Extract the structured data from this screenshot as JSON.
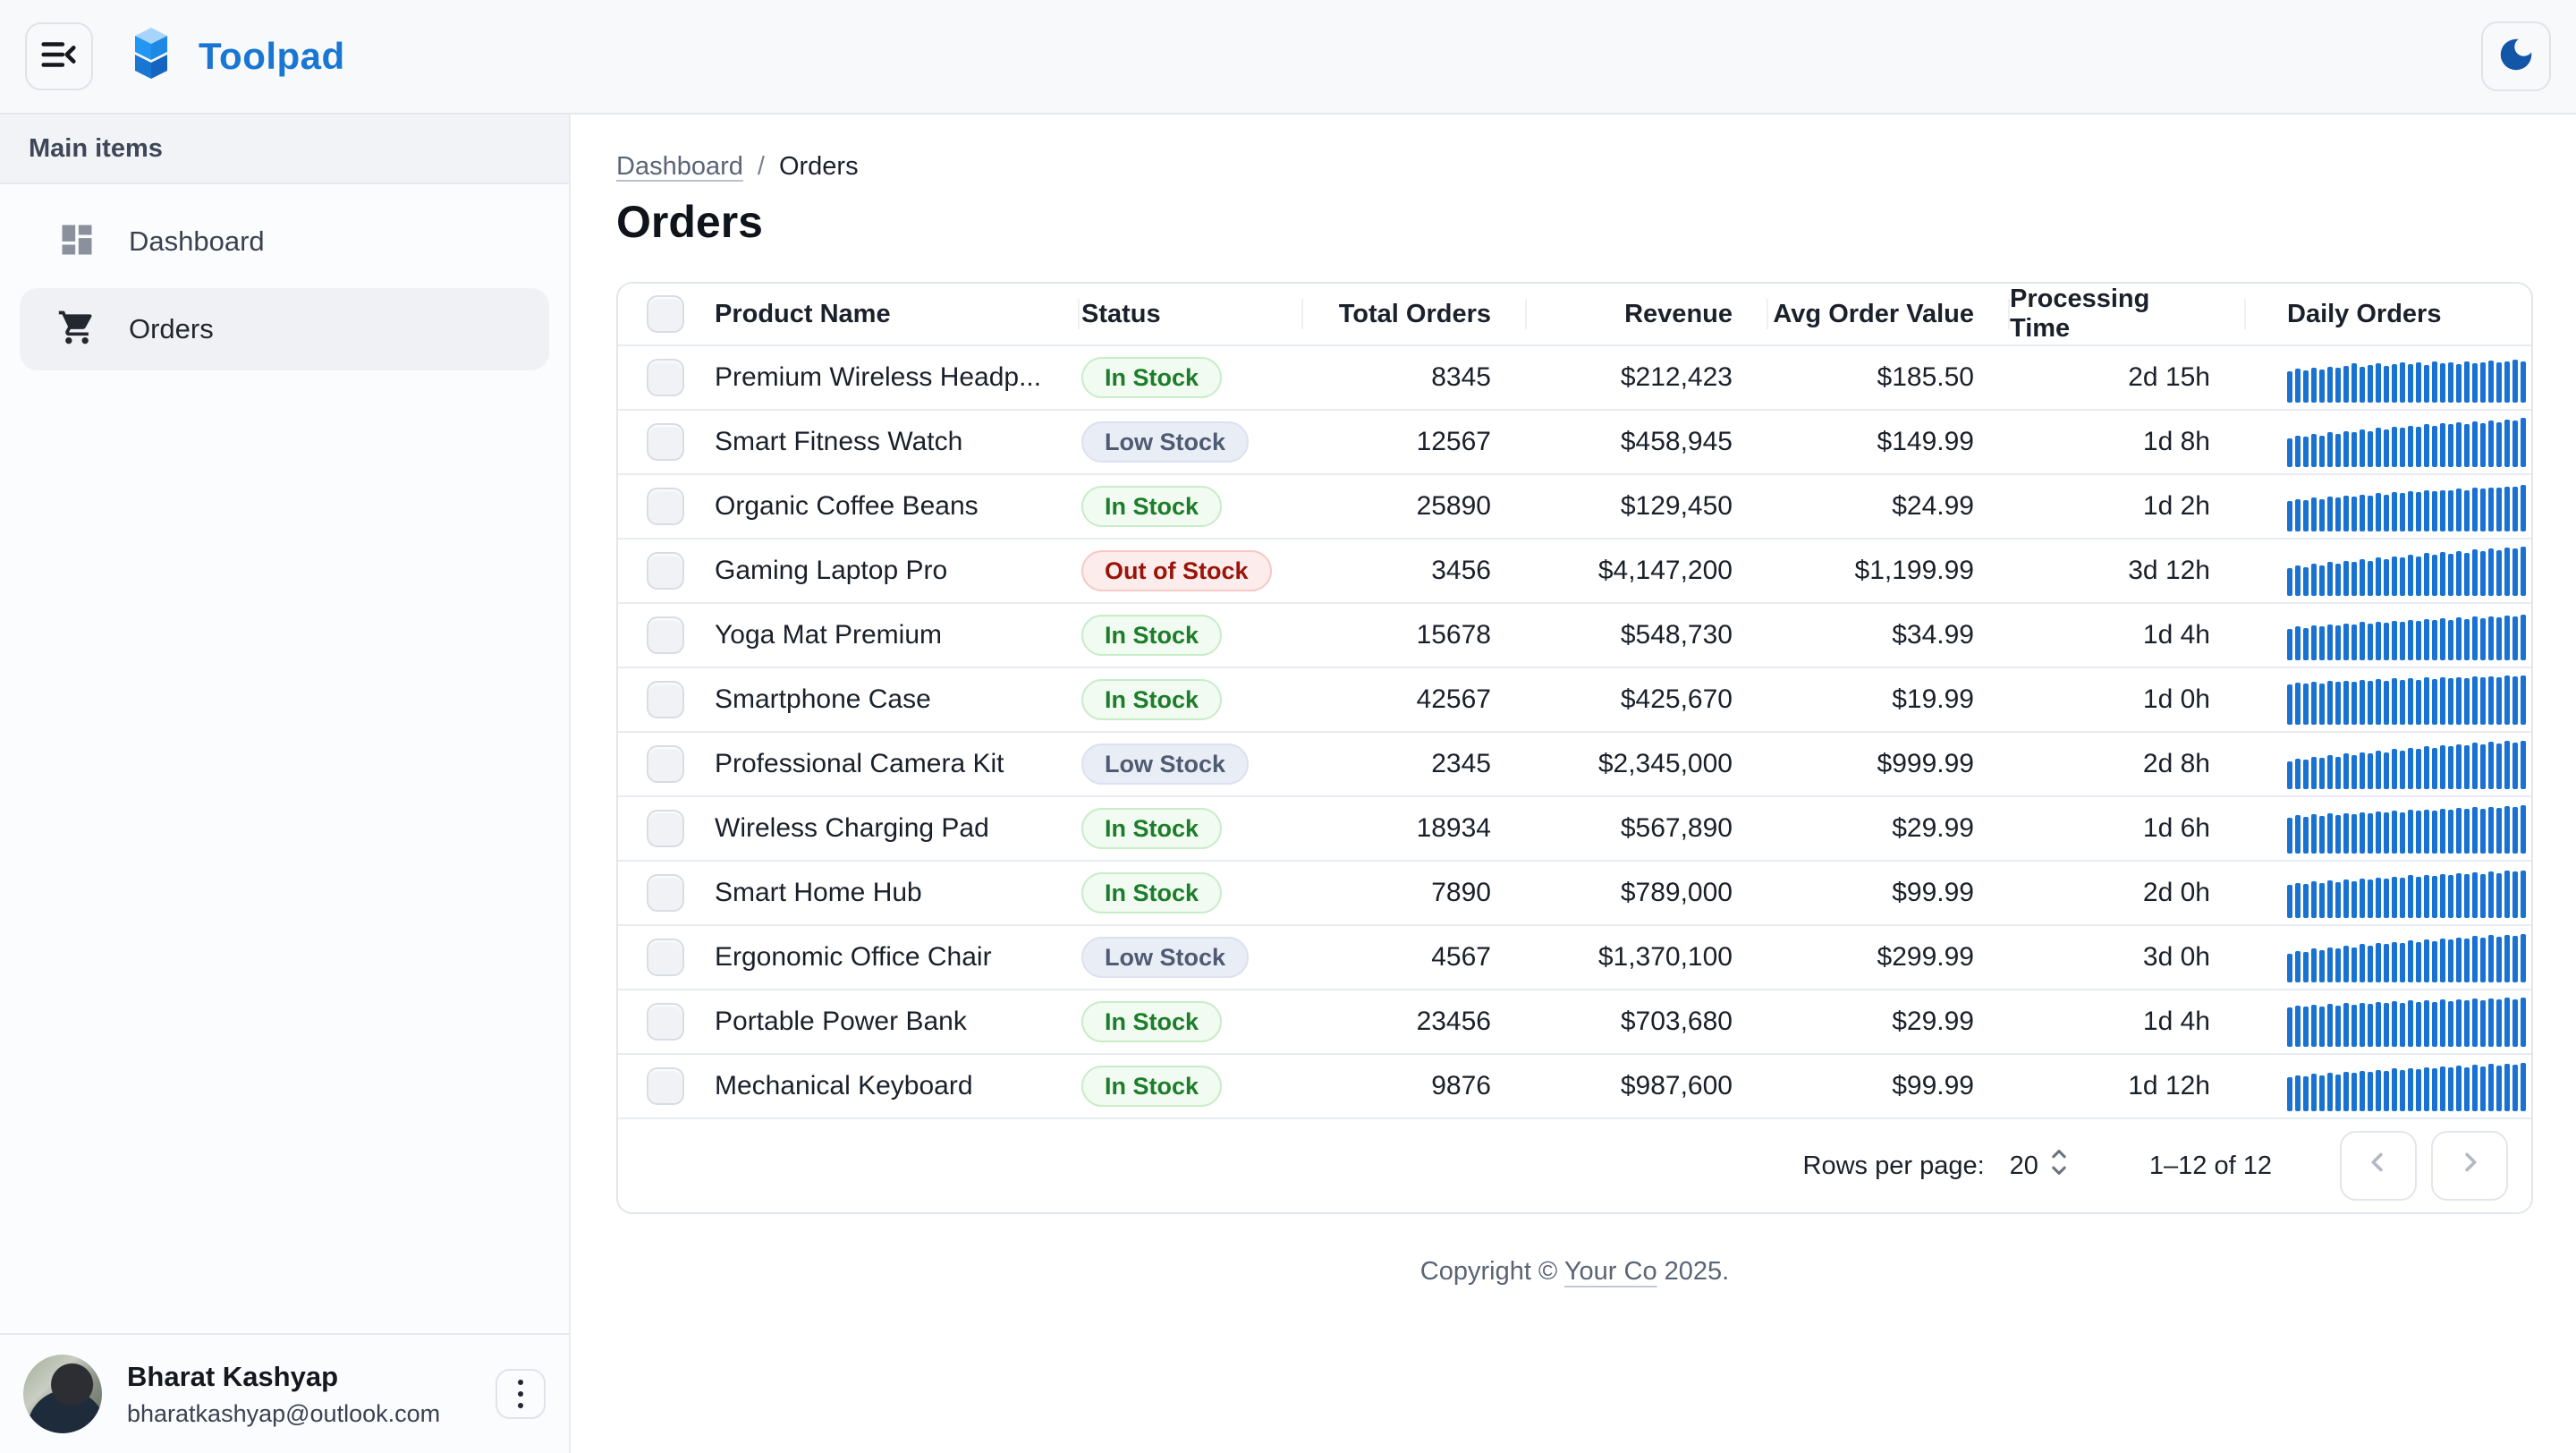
{
  "app": {
    "name": "Toolpad"
  },
  "sidebar": {
    "section_label": "Main items",
    "items": [
      {
        "label": "Dashboard",
        "icon": "dashboard-icon",
        "selected": false
      },
      {
        "label": "Orders",
        "icon": "cart-icon",
        "selected": true
      }
    ],
    "user": {
      "name": "Bharat Kashyap",
      "email": "bharatkashyap@outlook.com"
    }
  },
  "breadcrumb": {
    "items": [
      "Dashboard",
      "Orders"
    ]
  },
  "page": {
    "title": "Orders"
  },
  "table": {
    "columns": [
      "",
      "Product Name",
      "Status",
      "Total Orders",
      "Revenue",
      "Avg Order Value",
      "Processing Time",
      "Daily Orders"
    ],
    "rows": [
      {
        "product": "Premium Wireless Headp...",
        "status": "In Stock",
        "variant": "success",
        "total_orders": "8345",
        "revenue": "$212,423",
        "avg_order_value": "$185.50",
        "processing_time": "2d 15h",
        "spark": [
          62,
          68,
          64,
          70,
          66,
          72,
          69,
          74,
          78,
          72,
          75,
          79,
          74,
          77,
          81,
          76,
          80,
          75,
          82,
          78,
          80,
          77,
          83,
          79,
          81,
          84,
          80,
          82,
          86,
          83
        ]
      },
      {
        "product": "Smart Fitness Watch",
        "status": "Low Stock",
        "variant": "neutral",
        "total_orders": "12567",
        "revenue": "$458,945",
        "avg_order_value": "$149.99",
        "processing_time": "1d 8h",
        "spark": [
          58,
          62,
          60,
          66,
          63,
          69,
          66,
          72,
          70,
          75,
          72,
          78,
          75,
          80,
          78,
          83,
          80,
          85,
          82,
          87,
          85,
          89,
          86,
          91,
          88,
          93,
          90,
          95,
          93,
          98
        ]
      },
      {
        "product": "Organic Coffee Beans",
        "status": "In Stock",
        "variant": "success",
        "total_orders": "25890",
        "revenue": "$129,450",
        "avg_order_value": "$24.99",
        "processing_time": "1d 2h",
        "spark": [
          60,
          64,
          62,
          67,
          65,
          70,
          67,
          72,
          70,
          74,
          72,
          76,
          74,
          78,
          76,
          80,
          78,
          82,
          80,
          83,
          82,
          85,
          83,
          87,
          85,
          88,
          87,
          90,
          89,
          92
        ]
      },
      {
        "product": "Gaming Laptop Pro",
        "status": "Out of Stock",
        "variant": "error",
        "total_orders": "3456",
        "revenue": "$4,147,200",
        "avg_order_value": "$1,199.99",
        "processing_time": "3d 12h",
        "spark": [
          55,
          60,
          58,
          64,
          61,
          67,
          64,
          70,
          67,
          73,
          70,
          76,
          73,
          79,
          76,
          82,
          79,
          85,
          82,
          88,
          84,
          90,
          86,
          92,
          89,
          94,
          91,
          96,
          94,
          99
        ]
      },
      {
        "product": "Yoga Mat Premium",
        "status": "In Stock",
        "variant": "success",
        "total_orders": "15678",
        "revenue": "$548,730",
        "avg_order_value": "$34.99",
        "processing_time": "1d 4h",
        "spark": [
          63,
          67,
          65,
          70,
          67,
          72,
          69,
          74,
          71,
          76,
          73,
          77,
          75,
          79,
          76,
          81,
          78,
          82,
          80,
          84,
          81,
          85,
          83,
          87,
          84,
          88,
          86,
          90,
          88,
          91
        ]
      },
      {
        "product": "Smartphone Case",
        "status": "In Stock",
        "variant": "success",
        "total_orders": "42567",
        "revenue": "$425,670",
        "avg_order_value": "$19.99",
        "processing_time": "1d 0h",
        "spark": [
          80,
          84,
          82,
          86,
          83,
          87,
          85,
          88,
          86,
          90,
          87,
          91,
          88,
          92,
          89,
          93,
          90,
          94,
          91,
          94,
          92,
          95,
          93,
          96,
          94,
          97,
          95,
          98,
          96,
          99
        ]
      },
      {
        "product": "Professional Camera Kit",
        "status": "Low Stock",
        "variant": "neutral",
        "total_orders": "2345",
        "revenue": "$2,345,000",
        "avg_order_value": "$999.99",
        "processing_time": "2d 8h",
        "spark": [
          56,
          61,
          59,
          65,
          62,
          68,
          65,
          71,
          68,
          74,
          71,
          77,
          74,
          80,
          77,
          83,
          80,
          86,
          83,
          88,
          85,
          90,
          87,
          92,
          89,
          94,
          91,
          96,
          93,
          97
        ]
      },
      {
        "product": "Wireless Charging Pad",
        "status": "In Stock",
        "variant": "success",
        "total_orders": "18934",
        "revenue": "$567,890",
        "avg_order_value": "$29.99",
        "processing_time": "1d 6h",
        "spark": [
          72,
          76,
          74,
          78,
          75,
          80,
          77,
          81,
          79,
          83,
          80,
          84,
          82,
          86,
          83,
          87,
          85,
          88,
          86,
          90,
          87,
          91,
          89,
          92,
          90,
          93,
          91,
          95,
          93,
          96
        ]
      },
      {
        "product": "Smart Home Hub",
        "status": "In Stock",
        "variant": "success",
        "total_orders": "7890",
        "revenue": "$789,000",
        "avg_order_value": "$99.99",
        "processing_time": "2d 0h",
        "spark": [
          66,
          70,
          68,
          73,
          70,
          75,
          72,
          77,
          74,
          79,
          76,
          81,
          78,
          83,
          80,
          85,
          82,
          86,
          84,
          88,
          85,
          89,
          87,
          91,
          88,
          92,
          90,
          94,
          92,
          95
        ]
      },
      {
        "product": "Ergonomic Office Chair",
        "status": "Low Stock",
        "variant": "neutral",
        "total_orders": "4567",
        "revenue": "$1,370,100",
        "avg_order_value": "$299.99",
        "processing_time": "3d 0h",
        "spark": [
          58,
          63,
          61,
          67,
          64,
          70,
          67,
          73,
          70,
          76,
          73,
          78,
          76,
          81,
          78,
          84,
          81,
          86,
          83,
          88,
          85,
          90,
          87,
          92,
          89,
          94,
          91,
          95,
          93,
          97
        ]
      },
      {
        "product": "Portable Power Bank",
        "status": "In Stock",
        "variant": "success",
        "total_orders": "23456",
        "revenue": "$703,680",
        "avg_order_value": "$29.99",
        "processing_time": "1d 4h",
        "spark": [
          78,
          82,
          80,
          84,
          81,
          85,
          83,
          87,
          84,
          88,
          86,
          89,
          87,
          91,
          88,
          92,
          89,
          93,
          90,
          94,
          91,
          95,
          92,
          96,
          93,
          97,
          94,
          98,
          95,
          99
        ]
      },
      {
        "product": "Mechanical Keyboard",
        "status": "In Stock",
        "variant": "success",
        "total_orders": "9876",
        "revenue": "$987,600",
        "avg_order_value": "$99.99",
        "processing_time": "1d 12h",
        "spark": [
          68,
          72,
          70,
          75,
          72,
          77,
          74,
          79,
          76,
          81,
          78,
          83,
          80,
          85,
          82,
          86,
          84,
          88,
          85,
          89,
          87,
          91,
          88,
          92,
          90,
          94,
          91,
          95,
          93,
          96
        ]
      }
    ]
  },
  "pagination": {
    "rows_per_page_label": "Rows per page:",
    "rows_per_page": "20",
    "range": "1–12 of 12",
    "prev_icon": "chevron-left-icon",
    "next_icon": "chevron-right-icon"
  },
  "footer": {
    "prefix": "Copyright © ",
    "company": "Your Co",
    "suffix": " 2025."
  },
  "colors": {
    "brand_blue": "#1976D2",
    "spark_bar": "#1972D2",
    "moon": "#1356A8",
    "chip_success_text": "#1C7D2A",
    "chip_neutral_text": "#4F5B72",
    "chip_error_text": "#9A140A"
  }
}
